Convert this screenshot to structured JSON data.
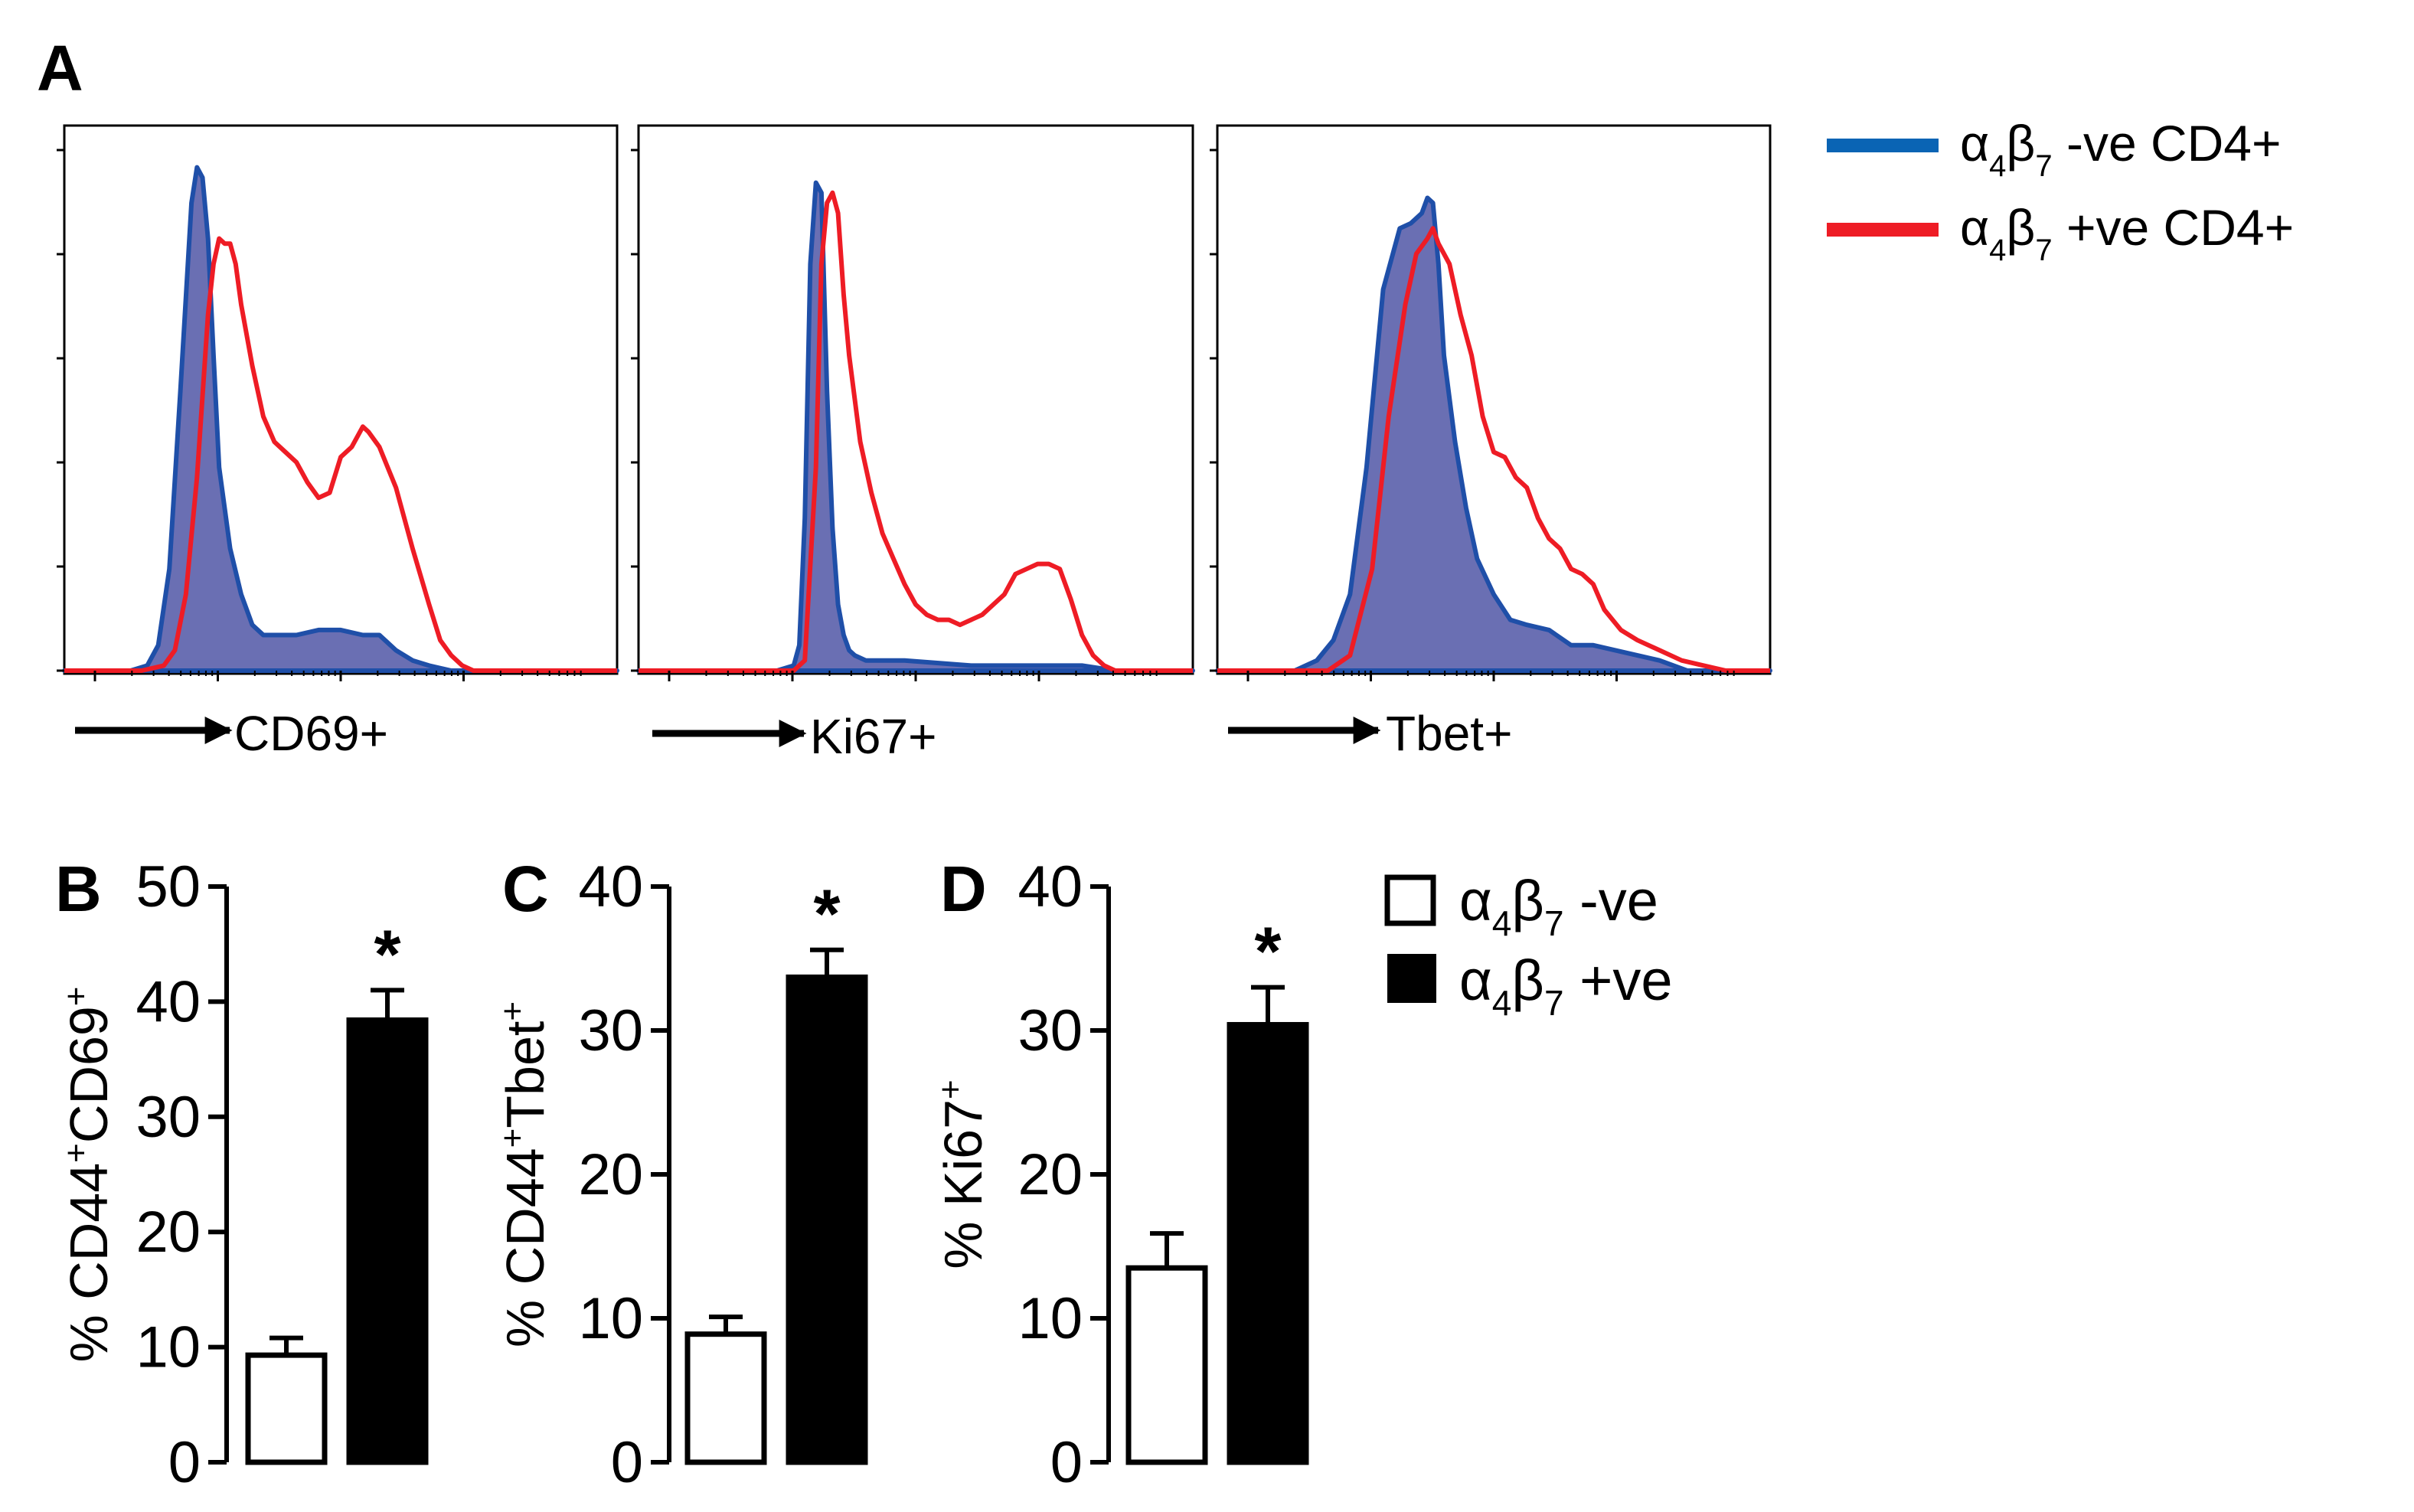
{
  "panel_labels": [
    "A",
    "B",
    "C",
    "D"
  ],
  "colors": {
    "neg_line": "#1f4fa8",
    "neg_fill": "#6a6fb3",
    "pos_line": "#ee1c25",
    "legend_blue": "#0a64b4",
    "bar_pos": "#000000",
    "bar_neg": "#ffffff"
  },
  "legend_hist": {
    "neg": {
      "pre": "α",
      "sub1": "4",
      "mid": "β",
      "sub2": "7",
      "post": " -ve CD4+"
    },
    "pos": {
      "pre": "α",
      "sub1": "4",
      "mid": "β",
      "sub2": "7",
      "post": " +ve CD4+"
    }
  },
  "legend_bar": {
    "neg": {
      "pre": "α",
      "sub1": "4",
      "mid": "β",
      "sub2": "7",
      "post": " -ve"
    },
    "pos": {
      "pre": "α",
      "sub1": "4",
      "mid": "β",
      "sub2": "7",
      "post": " +ve"
    }
  },
  "chart_data": [
    {
      "type": "area",
      "panel": "A",
      "xlabel": "CD69+",
      "ylabel": "",
      "series": [
        {
          "name": "α4β7 -ve CD4+",
          "x": [
            0.0,
            0.06,
            0.12,
            0.15,
            0.17,
            0.19,
            0.21,
            0.23,
            0.24,
            0.25,
            0.26,
            0.27,
            0.28,
            0.3,
            0.32,
            0.34,
            0.36,
            0.38,
            0.42,
            0.46,
            0.5,
            0.54,
            0.57,
            0.6,
            0.63,
            0.66,
            0.7,
            1.0
          ],
          "y": [
            0.0,
            0.0,
            0.0,
            0.01,
            0.05,
            0.2,
            0.55,
            0.92,
            0.99,
            0.97,
            0.85,
            0.62,
            0.4,
            0.24,
            0.15,
            0.09,
            0.07,
            0.07,
            0.07,
            0.08,
            0.08,
            0.07,
            0.07,
            0.04,
            0.02,
            0.01,
            0.0,
            0.0
          ]
        },
        {
          "name": "α4β7 +ve CD4+",
          "x": [
            0.0,
            0.14,
            0.18,
            0.2,
            0.22,
            0.24,
            0.26,
            0.27,
            0.28,
            0.29,
            0.3,
            0.31,
            0.32,
            0.34,
            0.36,
            0.38,
            0.4,
            0.42,
            0.44,
            0.46,
            0.48,
            0.5,
            0.52,
            0.54,
            0.55,
            0.57,
            0.6,
            0.63,
            0.66,
            0.68,
            0.7,
            0.72,
            0.74,
            1.0
          ],
          "y": [
            0.0,
            0.0,
            0.01,
            0.04,
            0.15,
            0.38,
            0.7,
            0.8,
            0.85,
            0.84,
            0.84,
            0.8,
            0.72,
            0.6,
            0.5,
            0.45,
            0.43,
            0.41,
            0.37,
            0.34,
            0.35,
            0.42,
            0.44,
            0.48,
            0.47,
            0.44,
            0.36,
            0.24,
            0.13,
            0.06,
            0.03,
            0.01,
            0.0,
            0.0
          ]
        }
      ]
    },
    {
      "type": "area",
      "panel": "A",
      "xlabel": "Ki67+",
      "ylabel": "",
      "series": [
        {
          "name": "α4β7 -ve CD4+",
          "x": [
            0.0,
            0.25,
            0.28,
            0.29,
            0.3,
            0.31,
            0.32,
            0.33,
            0.34,
            0.35,
            0.36,
            0.37,
            0.38,
            0.39,
            0.41,
            0.43,
            0.48,
            0.6,
            0.7,
            0.8,
            0.86,
            1.0
          ],
          "y": [
            0.0,
            0.0,
            0.01,
            0.05,
            0.3,
            0.8,
            0.96,
            0.94,
            0.55,
            0.28,
            0.13,
            0.07,
            0.04,
            0.03,
            0.02,
            0.02,
            0.02,
            0.01,
            0.01,
            0.01,
            0.0,
            0.0
          ]
        },
        {
          "name": "α4β7 +ve CD4+",
          "x": [
            0.0,
            0.28,
            0.3,
            0.32,
            0.33,
            0.34,
            0.35,
            0.36,
            0.37,
            0.38,
            0.4,
            0.42,
            0.44,
            0.46,
            0.48,
            0.5,
            0.52,
            0.54,
            0.56,
            0.58,
            0.6,
            0.62,
            0.64,
            0.66,
            0.68,
            0.7,
            0.72,
            0.74,
            0.76,
            0.78,
            0.8,
            0.82,
            0.84,
            0.86,
            1.0
          ],
          "y": [
            0.0,
            0.0,
            0.02,
            0.4,
            0.8,
            0.92,
            0.94,
            0.9,
            0.74,
            0.62,
            0.45,
            0.35,
            0.27,
            0.22,
            0.17,
            0.13,
            0.11,
            0.1,
            0.1,
            0.09,
            0.1,
            0.11,
            0.13,
            0.15,
            0.19,
            0.2,
            0.21,
            0.21,
            0.2,
            0.14,
            0.07,
            0.03,
            0.01,
            0.0,
            0.0
          ]
        }
      ]
    },
    {
      "type": "area",
      "panel": "A",
      "xlabel": "Tbet+",
      "ylabel": "",
      "series": [
        {
          "name": "α4β7 -ve CD4+",
          "x": [
            0.0,
            0.14,
            0.18,
            0.21,
            0.24,
            0.27,
            0.3,
            0.33,
            0.35,
            0.37,
            0.38,
            0.39,
            0.4,
            0.41,
            0.43,
            0.45,
            0.47,
            0.5,
            0.53,
            0.56,
            0.6,
            0.64,
            0.68,
            0.72,
            0.76,
            0.8,
            0.85,
            1.0
          ],
          "y": [
            0.0,
            0.0,
            0.02,
            0.06,
            0.15,
            0.4,
            0.75,
            0.87,
            0.88,
            0.9,
            0.93,
            0.92,
            0.8,
            0.62,
            0.45,
            0.32,
            0.22,
            0.15,
            0.1,
            0.09,
            0.08,
            0.05,
            0.05,
            0.04,
            0.03,
            0.02,
            0.0,
            0.0
          ]
        },
        {
          "name": "α4β7 +ve CD4+",
          "x": [
            0.0,
            0.2,
            0.24,
            0.28,
            0.31,
            0.34,
            0.36,
            0.38,
            0.39,
            0.4,
            0.42,
            0.44,
            0.46,
            0.48,
            0.5,
            0.52,
            0.54,
            0.56,
            0.58,
            0.6,
            0.62,
            0.64,
            0.66,
            0.68,
            0.7,
            0.73,
            0.76,
            0.8,
            0.84,
            0.88,
            0.92,
            1.0
          ],
          "y": [
            0.0,
            0.0,
            0.03,
            0.2,
            0.5,
            0.72,
            0.82,
            0.85,
            0.87,
            0.84,
            0.8,
            0.7,
            0.62,
            0.5,
            0.43,
            0.42,
            0.38,
            0.36,
            0.3,
            0.26,
            0.24,
            0.2,
            0.19,
            0.17,
            0.12,
            0.08,
            0.06,
            0.04,
            0.02,
            0.01,
            0.0,
            0.0
          ]
        }
      ]
    },
    {
      "type": "bar",
      "panel": "B",
      "categories": [
        "α4β7 -ve",
        "α4β7 +ve"
      ],
      "values": [
        9.3,
        38.4
      ],
      "errors": [
        1.5,
        2.6
      ],
      "ylabel": {
        "pre": "% CD44",
        "sup1": "+",
        "mid": "CD69",
        "sup2": "+"
      },
      "yticks": [
        "0",
        "10",
        "20",
        "30",
        "40",
        "50"
      ],
      "ylim": [
        0,
        50
      ],
      "significance": [
        "",
        "*"
      ]
    },
    {
      "type": "bar",
      "panel": "C",
      "categories": [
        "α4β7 -ve",
        "α4β7 +ve"
      ],
      "values": [
        8.9,
        33.7
      ],
      "errors": [
        1.2,
        1.9
      ],
      "ylabel": {
        "pre": "% CD44",
        "sup1": "+",
        "mid": "Tbet",
        "sup2": "+"
      },
      "yticks": [
        "0",
        "10",
        "20",
        "30",
        "40"
      ],
      "ylim": [
        0,
        40
      ],
      "significance": [
        "",
        "*"
      ]
    },
    {
      "type": "bar",
      "panel": "D",
      "categories": [
        "α4β7 -ve",
        "α4β7 +ve"
      ],
      "values": [
        13.5,
        30.4
      ],
      "errors": [
        2.4,
        2.6
      ],
      "ylabel": {
        "pre": "% Ki67",
        "sup1": "+",
        "mid": "",
        "sup2": ""
      },
      "yticks": [
        "0",
        "10",
        "20",
        "30",
        "40"
      ],
      "ylim": [
        0,
        40
      ],
      "significance": [
        "",
        "*"
      ]
    }
  ]
}
